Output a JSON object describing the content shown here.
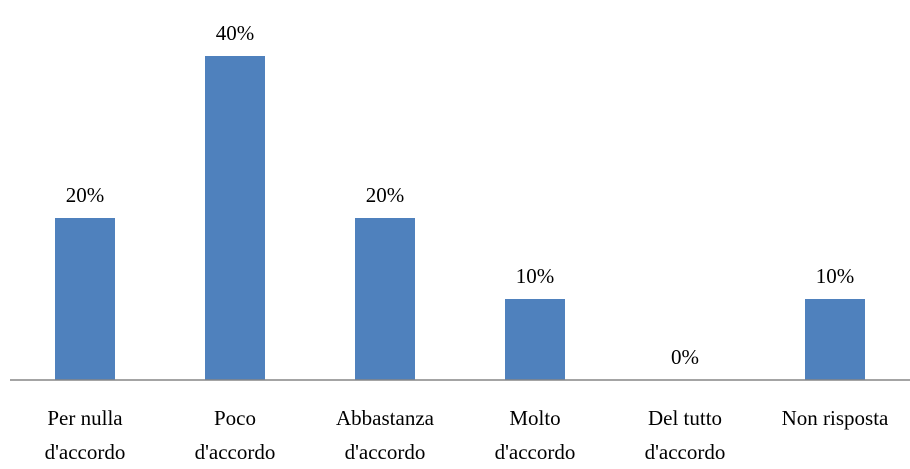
{
  "chart_data": {
    "type": "bar",
    "categories": [
      [
        "Per nulla",
        "d'accordo"
      ],
      [
        "Poco",
        "d'accordo"
      ],
      [
        "Abbastanza",
        "d'accordo"
      ],
      [
        "Molto",
        "d'accordo"
      ],
      [
        "Del tutto",
        "d'accordo"
      ],
      [
        "Non risposta"
      ]
    ],
    "values": [
      20,
      40,
      20,
      10,
      0,
      10
    ],
    "value_labels": [
      "20%",
      "40%",
      "20%",
      "10%",
      "0%",
      "10%"
    ],
    "unit": "%",
    "ylim": [
      0,
      40
    ],
    "grid": false,
    "legend": "none",
    "bar_color": "#4f81bd",
    "axis_color": "#868686"
  }
}
